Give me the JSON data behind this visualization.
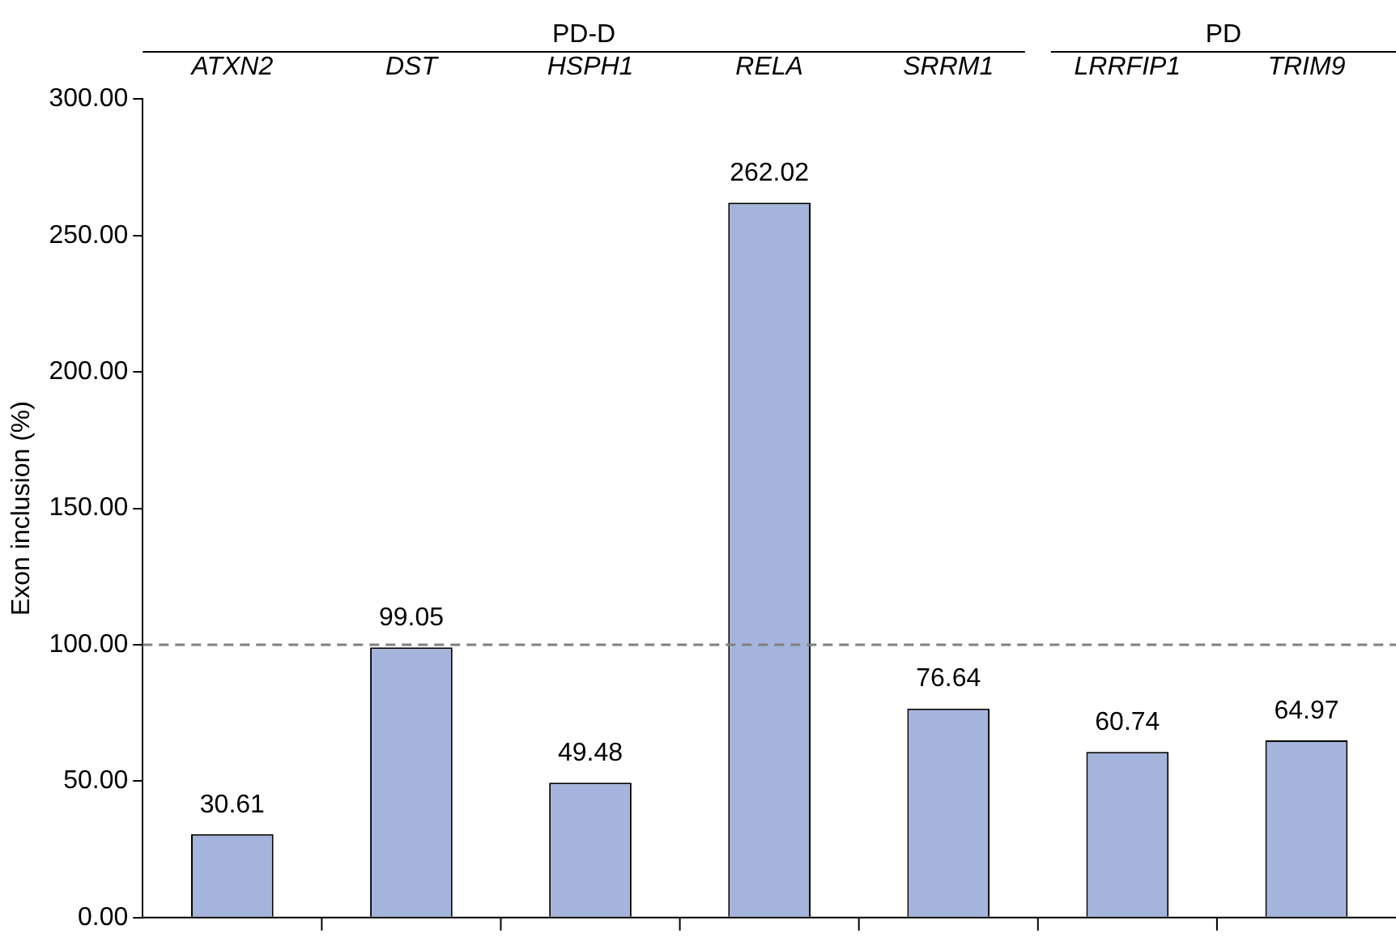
{
  "chart_data": {
    "type": "bar",
    "ylabel": "Exon inclusion (%)",
    "categories": [
      "ATXN2",
      "DST",
      "HSPH1",
      "RELA",
      "SRRM1",
      "LRRFIP1",
      "TRIM9"
    ],
    "values": [
      30.61,
      99.05,
      49.48,
      262.02,
      76.64,
      60.74,
      64.97
    ],
    "color": "#a4b4dc",
    "ylim": [
      0,
      300
    ],
    "yticks": [
      {
        "value": 0,
        "label": "0.00"
      },
      {
        "value": 50,
        "label": "50.00"
      },
      {
        "value": 100,
        "label": "100.00"
      },
      {
        "value": 150,
        "label": "150.00"
      },
      {
        "value": 200,
        "label": "200.00"
      },
      {
        "value": 250,
        "label": "250.00"
      },
      {
        "value": 300,
        "label": "300.00"
      }
    ],
    "ref_lines": [
      {
        "axis": "y",
        "value": 100,
        "color": "#808080",
        "line_style": "dashed"
      }
    ],
    "annotations": [
      "PD-D",
      "PD"
    ],
    "data_labels": true,
    "grid": false,
    "legend": false
  }
}
